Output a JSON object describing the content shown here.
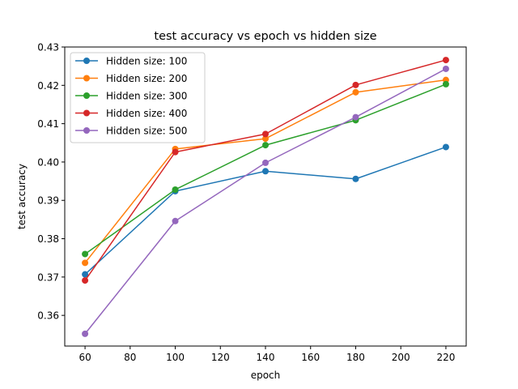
{
  "chart_data": {
    "type": "line",
    "title": "test accuracy vs epoch vs hidden size",
    "xlabel": "epoch",
    "ylabel": "test accuracy",
    "x": [
      60,
      100,
      140,
      180,
      220
    ],
    "xlim": [
      51,
      229
    ],
    "ylim": [
      0.352,
      0.43
    ],
    "xticks": [
      60,
      80,
      100,
      120,
      140,
      160,
      180,
      200,
      220
    ],
    "yticks": [
      "0.36",
      "0.37",
      "0.38",
      "0.39",
      "0.40",
      "0.41",
      "0.42",
      "0.43"
    ],
    "grid": false,
    "legend_position": "upper-left",
    "series": [
      {
        "name": "Hidden size: 100",
        "color": "#1f77b4",
        "values": [
          0.3707,
          0.3924,
          0.3976,
          0.3956,
          0.4039
        ]
      },
      {
        "name": "Hidden size: 200",
        "color": "#ff7f0e",
        "values": [
          0.3737,
          0.4034,
          0.4061,
          0.4182,
          0.4214
        ]
      },
      {
        "name": "Hidden size: 300",
        "color": "#2ca02c",
        "values": [
          0.376,
          0.3928,
          0.4044,
          0.4109,
          0.4203
        ]
      },
      {
        "name": "Hidden size: 400",
        "color": "#d62728",
        "values": [
          0.3691,
          0.4026,
          0.4073,
          0.4201,
          0.4266
        ]
      },
      {
        "name": "Hidden size: 500",
        "color": "#9467bd",
        "values": [
          0.3552,
          0.3846,
          0.3998,
          0.4117,
          0.4243
        ]
      }
    ]
  }
}
